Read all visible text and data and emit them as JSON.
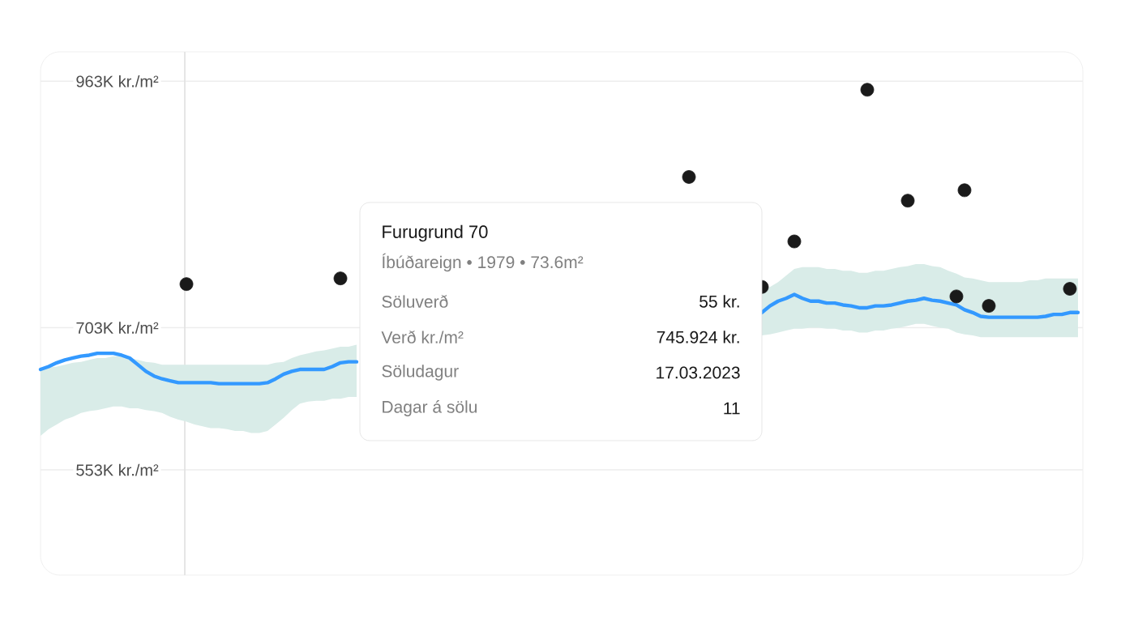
{
  "chart_data": {
    "type": "line",
    "categories": [
      null,
      null,
      null,
      null,
      null,
      null,
      null,
      null,
      null,
      null,
      null,
      null,
      null,
      null,
      null,
      null,
      null,
      null,
      null,
      null,
      null,
      null,
      null,
      null,
      null,
      null,
      null,
      null,
      null,
      null,
      null,
      null,
      null,
      null,
      null,
      null,
      null,
      null,
      null,
      null,
      null,
      null,
      null,
      null,
      null,
      null,
      null,
      null,
      null,
      null,
      null,
      null,
      null,
      null,
      null,
      null,
      null,
      null,
      null,
      null,
      null,
      null,
      null,
      null,
      null,
      null,
      null,
      null,
      null,
      null,
      null,
      null,
      null,
      null,
      null,
      null,
      null,
      null,
      null,
      null,
      null,
      null,
      null,
      null,
      null,
      null,
      null,
      null,
      null,
      null,
      null,
      null,
      null,
      null,
      null,
      null,
      null,
      null,
      null,
      null,
      null,
      null,
      null,
      null,
      null,
      null,
      null,
      null,
      null,
      null,
      null,
      null,
      null,
      null,
      null,
      null,
      null,
      null,
      null,
      null,
      null,
      null,
      null,
      null,
      null,
      null,
      null,
      null,
      null
    ],
    "ylim": [
      442,
      994
    ],
    "yticks": [
      {
        "value": 553,
        "label": "553K kr./m²"
      },
      {
        "value": 703,
        "label": "703K kr./m²"
      },
      {
        "value": 963,
        "label": "963K kr./m²"
      }
    ],
    "grid": "y",
    "series": [
      {
        "color": "#3399ff",
        "values": [
          659,
          662,
          666,
          669,
          671,
          673,
          674,
          676,
          676,
          676,
          674,
          671,
          664,
          657,
          652,
          649,
          647,
          645,
          645,
          645,
          645,
          645,
          644,
          644,
          644,
          644,
          644,
          644,
          645,
          649,
          654,
          657,
          659,
          659,
          659,
          659,
          662,
          666,
          667,
          667,
          null,
          null,
          null,
          null,
          null,
          null,
          null,
          null,
          null,
          null,
          null,
          null,
          null,
          null,
          null,
          null,
          null,
          null,
          null,
          null,
          null,
          null,
          null,
          null,
          null,
          null,
          null,
          null,
          null,
          null,
          null,
          null,
          null,
          null,
          null,
          null,
          null,
          null,
          null,
          null,
          null,
          null,
          null,
          null,
          null,
          null,
          null,
          null,
          null,
          719,
          726,
          731,
          734,
          738,
          734,
          731,
          731,
          729,
          729,
          727,
          726,
          724,
          724,
          726,
          726,
          727,
          729,
          731,
          732,
          734,
          732,
          731,
          729,
          727,
          722,
          719,
          715,
          714,
          714,
          714,
          714,
          714,
          714,
          714,
          715,
          717,
          717,
          719,
          719
        ],
        "upper": [
          659,
          661,
          662,
          664,
          666,
          667,
          669,
          671,
          671,
          673,
          673,
          671,
          669,
          667,
          666,
          664,
          664,
          664,
          664,
          664,
          664,
          664,
          664,
          664,
          664,
          664,
          664,
          664,
          664,
          666,
          667,
          671,
          674,
          676,
          678,
          679,
          681,
          683,
          683,
          685,
          null,
          null,
          null,
          null,
          null,
          null,
          null,
          null,
          null,
          null,
          null,
          null,
          null,
          null,
          null,
          null,
          null,
          null,
          null,
          null,
          null,
          null,
          null,
          null,
          null,
          null,
          null,
          null,
          null,
          null,
          null,
          null,
          null,
          null,
          null,
          null,
          null,
          null,
          null,
          null,
          null,
          null,
          null,
          null,
          null,
          null,
          null,
          null,
          null,
          741,
          746,
          751,
          758,
          765,
          767,
          767,
          767,
          765,
          765,
          763,
          763,
          761,
          761,
          763,
          763,
          765,
          767,
          768,
          770,
          770,
          768,
          767,
          763,
          760,
          756,
          755,
          753,
          751,
          751,
          751,
          751,
          751,
          753,
          753,
          755,
          755,
          755,
          755,
          755
        ],
        "lower": [
          589,
          596,
          601,
          606,
          609,
          613,
          615,
          616,
          618,
          620,
          620,
          618,
          618,
          616,
          615,
          613,
          609,
          606,
          604,
          601,
          599,
          597,
          597,
          596,
          594,
          594,
          592,
          592,
          594,
          601,
          608,
          616,
          623,
          625,
          626,
          626,
          628,
          628,
          630,
          630,
          null,
          null,
          null,
          null,
          null,
          null,
          null,
          null,
          null,
          null,
          null,
          null,
          null,
          null,
          null,
          null,
          null,
          null,
          null,
          null,
          null,
          null,
          null,
          null,
          null,
          null,
          null,
          null,
          null,
          null,
          null,
          null,
          null,
          null,
          null,
          null,
          null,
          null,
          null,
          null,
          null,
          null,
          null,
          null,
          null,
          null,
          null,
          null,
          null,
          695,
          696,
          698,
          700,
          702,
          702,
          703,
          703,
          702,
          702,
          700,
          700,
          698,
          698,
          700,
          700,
          702,
          703,
          705,
          707,
          707,
          705,
          703,
          702,
          698,
          696,
          695,
          693,
          693,
          693,
          693,
          693,
          693,
          693,
          693,
          693,
          693,
          693,
          693,
          693
        ]
      },
      {
        "type": "scatter",
        "color": "#1a1a1a",
        "values": [
          null,
          null,
          null,
          null,
          null,
          null,
          null,
          null,
          null,
          null,
          null,
          null,
          null,
          null,
          null,
          null,
          null,
          null,
          749,
          null,
          null,
          null,
          null,
          null,
          null,
          null,
          null,
          null,
          null,
          null,
          null,
          null,
          null,
          null,
          null,
          null,
          null,
          755,
          null,
          null,
          null,
          null,
          null,
          null,
          null,
          null,
          null,
          null,
          null,
          null,
          null,
          null,
          null,
          null,
          null,
          null,
          null,
          null,
          null,
          null,
          null,
          null,
          null,
          null,
          null,
          null,
          null,
          null,
          null,
          null,
          null,
          null,
          null,
          null,
          null,
          null,
          null,
          null,
          null,
          null,
          862,
          null,
          null,
          null,
          null,
          null,
          null,
          null,
          null,
          746,
          null,
          null,
          null,
          794,
          null,
          null,
          null,
          null,
          null,
          null,
          null,
          null,
          954,
          null,
          null,
          null,
          null,
          837,
          null,
          null,
          null,
          null,
          null,
          736,
          848,
          null,
          null,
          726,
          null,
          null,
          null,
          null,
          null,
          null,
          null,
          null,
          null,
          744,
          null
        ]
      }
    ],
    "annotations": [
      "Furugrund 70",
      "Íbúðareign • 1979 • 73.6m²",
      "Söluverð",
      "55 kr.",
      "Verð kr./m²",
      "745.924 kr.",
      "Söludagur",
      "17.03.2023",
      "Dagar á sölu",
      "11"
    ]
  }
}
